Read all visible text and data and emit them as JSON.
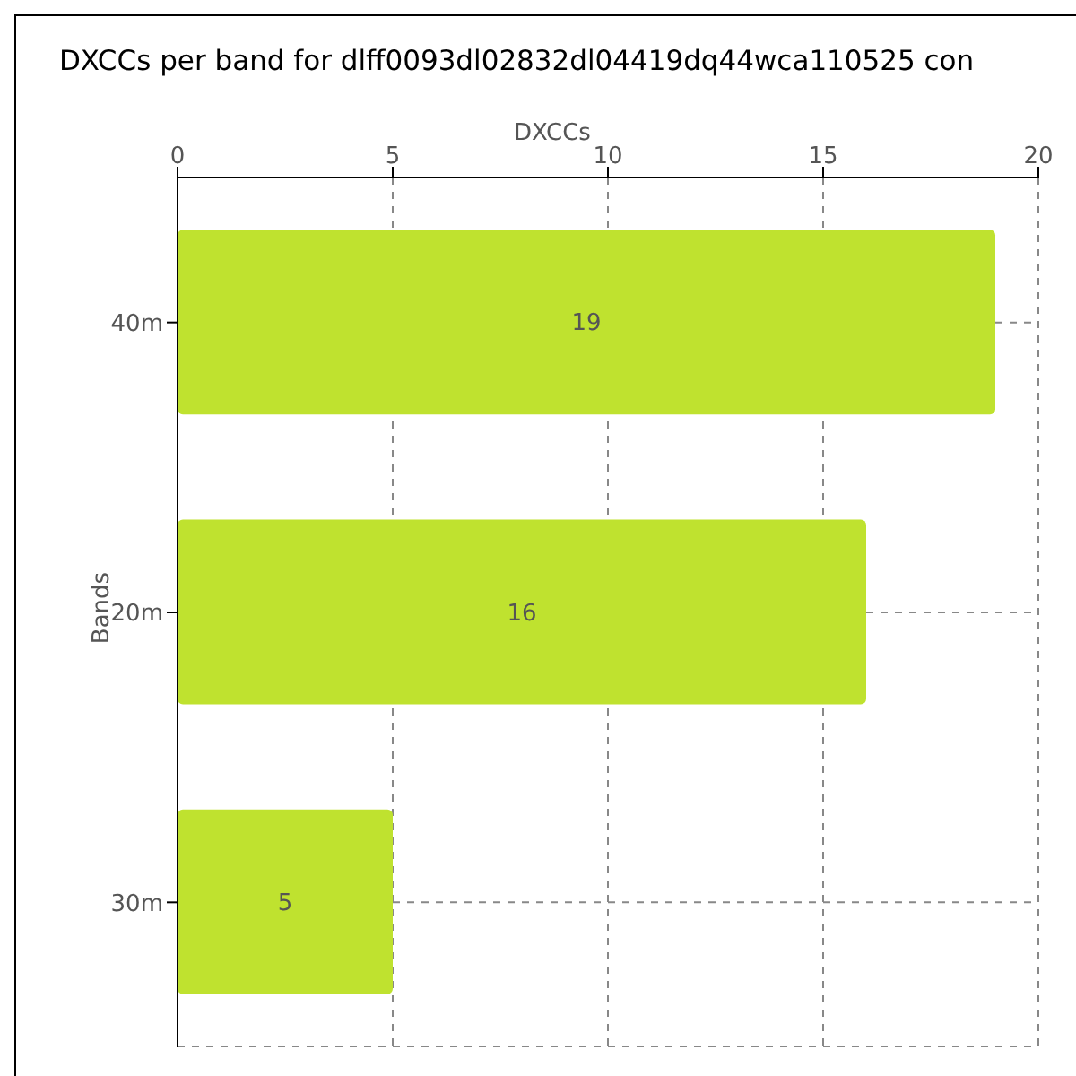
{
  "chart_data": {
    "type": "bar",
    "orientation": "horizontal",
    "title": "DXCCs per band for dlff0093dl02832dl04419dq44wca110525 con",
    "xlabel": "DXCCs",
    "ylabel": "Bands",
    "categories": [
      "40m",
      "20m",
      "30m"
    ],
    "values": [
      19,
      16,
      5
    ],
    "color": "#bfe22f",
    "xlim": [
      0,
      20
    ],
    "xticks": [
      0,
      5,
      10,
      15,
      20
    ],
    "grid": true,
    "data_labels": true
  }
}
